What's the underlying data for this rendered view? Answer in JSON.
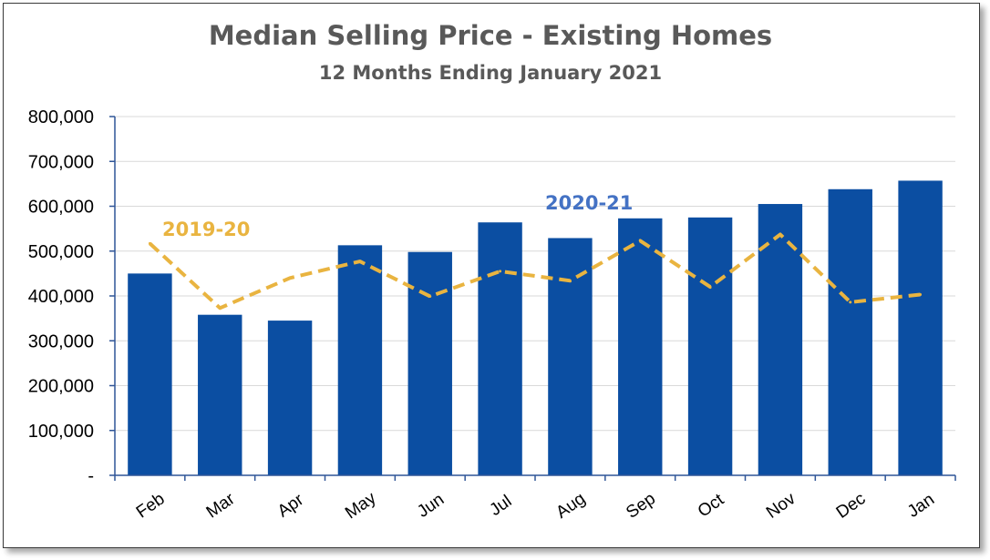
{
  "chart_data": {
    "type": "bar",
    "title": "Median Selling Price - Existing Homes",
    "subtitle": "12 Months Ending January 2021",
    "categories": [
      "Feb",
      "Mar",
      "Apr",
      "May",
      "Jun",
      "Jul",
      "Aug",
      "Sep",
      "Oct",
      "Nov",
      "Dec",
      "Jan"
    ],
    "series": [
      {
        "name": "2020-21",
        "type": "bar",
        "color": "#0B4EA2",
        "values": [
          450000,
          358000,
          345000,
          513000,
          498000,
          564000,
          529000,
          573000,
          575000,
          605000,
          638000,
          657000
        ]
      },
      {
        "name": "2019-20",
        "type": "line",
        "style": "dashed",
        "color": "#E9B440",
        "values": [
          517000,
          373000,
          440000,
          477000,
          399000,
          455000,
          434000,
          523000,
          420000,
          537000,
          386000,
          403000
        ]
      }
    ],
    "y_tick_labels": [
      "-",
      "100,000",
      "200,000",
      "300,000",
      "400,000",
      "500,000",
      "600,000",
      "700,000",
      "800,000"
    ],
    "ylim": [
      0,
      800000
    ],
    "xlabel": "",
    "ylabel": "",
    "grid": true
  }
}
